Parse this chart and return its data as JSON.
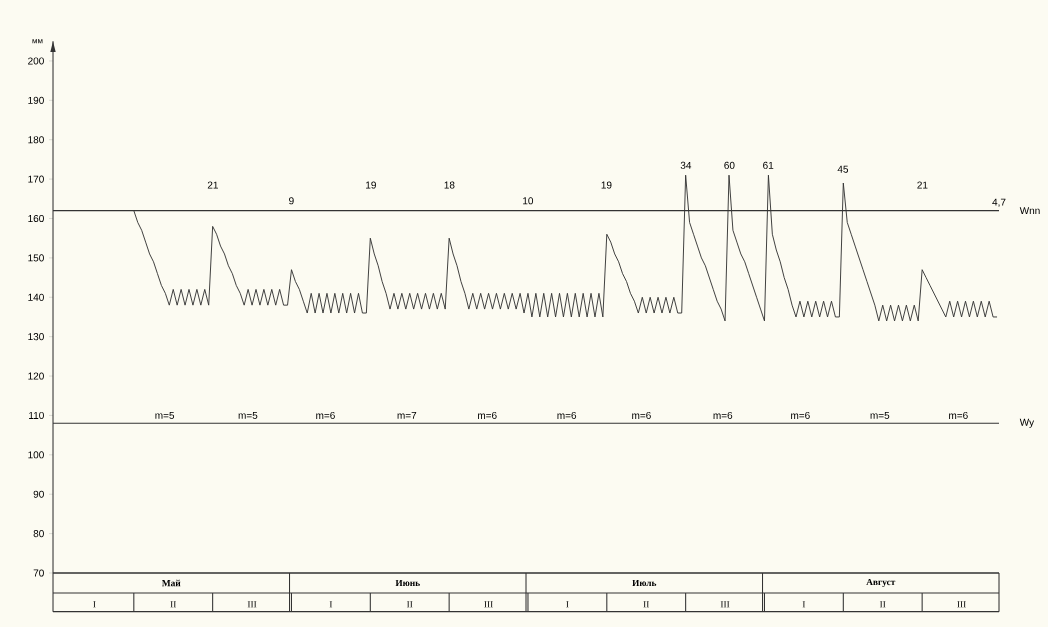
{
  "chart_data": {
    "type": "line",
    "ylabel": "мм",
    "color": "#333333",
    "ylim": [
      70,
      205
    ],
    "yticks": [
      70,
      80,
      90,
      100,
      110,
      120,
      130,
      140,
      150,
      160,
      170,
      180,
      190,
      200
    ],
    "categories": [
      null,
      null,
      null,
      null,
      null,
      null,
      null,
      null,
      null,
      null,
      "I",
      null,
      null,
      null,
      null,
      null,
      null,
      null,
      null,
      null,
      null,
      null,
      null,
      null,
      null,
      null,
      null,
      null,
      null,
      null,
      "II",
      null,
      null,
      null,
      null,
      null,
      null,
      null,
      null,
      null,
      null,
      null,
      null,
      null,
      null,
      null,
      null,
      null,
      null,
      null,
      "III",
      null,
      null,
      null,
      null,
      null,
      null,
      null,
      null,
      null,
      null,
      null,
      null,
      null,
      null,
      null,
      null,
      null,
      null,
      null,
      "I",
      null,
      null,
      null,
      null,
      null,
      null,
      null,
      null,
      null,
      null,
      null,
      null,
      null,
      null,
      null,
      null,
      null,
      null,
      null,
      "II",
      null,
      null,
      null,
      null,
      null,
      null,
      null,
      null,
      null,
      null,
      null,
      null,
      null,
      null,
      null,
      null,
      null,
      null,
      null,
      "III",
      null,
      null,
      null,
      null,
      null,
      null,
      null,
      null,
      null,
      null,
      null,
      null,
      null,
      null,
      null,
      null,
      null,
      null,
      null,
      "I",
      null,
      null,
      null,
      null,
      null,
      null,
      null,
      null,
      null,
      null,
      null,
      null,
      null,
      null,
      null,
      null,
      null,
      null,
      null,
      "II",
      null,
      null,
      null,
      null,
      null,
      null,
      null,
      null,
      null,
      null,
      null,
      null,
      null,
      null,
      null,
      null,
      null,
      null,
      null,
      "III",
      null,
      null,
      null,
      null,
      null,
      null,
      null,
      null,
      null,
      null,
      null,
      null,
      null,
      null,
      null,
      null,
      null,
      null,
      null,
      "I",
      null,
      null,
      null,
      null,
      null,
      null,
      null,
      null,
      null,
      null,
      null,
      null,
      null,
      null,
      null,
      null,
      null,
      null,
      null,
      "II",
      null,
      null,
      null,
      null,
      null,
      null,
      null,
      null,
      null,
      null,
      null,
      null,
      null,
      null,
      null,
      null,
      null,
      null,
      null,
      "III",
      null,
      null,
      null,
      null,
      null,
      null,
      null,
      null,
      null
    ],
    "values": [
      null,
      null,
      null,
      null,
      null,
      null,
      null,
      null,
      null,
      null,
      null,
      null,
      null,
      null,
      null,
      null,
      null,
      null,
      null,
      null,
      162,
      159,
      157,
      154,
      151,
      149,
      146,
      143,
      141,
      138,
      142,
      138,
      142,
      138,
      142,
      138,
      142,
      138,
      142,
      138,
      158,
      156,
      153,
      151,
      148,
      146,
      143,
      141,
      138,
      142,
      138,
      142,
      138,
      142,
      138,
      142,
      138,
      142,
      138,
      138,
      147,
      144,
      142,
      139,
      136,
      141,
      136,
      141,
      136,
      141,
      136,
      141,
      136,
      141,
      136,
      141,
      136,
      141,
      136,
      136,
      155,
      151,
      148,
      144,
      141,
      137,
      141,
      137,
      141,
      137,
      141,
      137,
      141,
      137,
      141,
      137,
      141,
      137,
      141,
      137,
      155,
      151,
      148,
      144,
      141,
      137,
      141,
      137,
      141,
      137,
      141,
      137,
      141,
      137,
      141,
      137,
      141,
      137,
      141,
      136,
      141,
      135,
      141,
      135,
      141,
      135,
      141,
      135,
      141,
      135,
      141,
      135,
      141,
      135,
      141,
      135,
      141,
      135,
      141,
      135,
      156,
      154,
      151,
      149,
      146,
      144,
      141,
      139,
      136,
      140,
      136,
      140,
      136,
      140,
      136,
      140,
      136,
      140,
      136,
      136,
      171,
      159,
      156,
      153,
      150,
      148,
      145,
      142,
      139,
      137,
      134,
      171,
      157,
      154,
      151,
      149,
      146,
      143,
      140,
      137,
      134,
      171,
      156,
      152,
      149,
      145,
      142,
      138,
      135,
      139,
      135,
      139,
      135,
      139,
      135,
      139,
      135,
      139,
      135,
      135,
      169,
      159,
      156,
      153,
      150,
      147,
      144,
      141,
      138,
      134,
      138,
      134,
      138,
      134,
      138,
      134,
      138,
      134,
      138,
      134,
      147,
      145,
      143,
      141,
      139,
      137,
      135,
      139,
      135,
      139,
      135,
      139,
      135,
      139,
      135,
      139,
      135,
      139,
      135,
      135
    ],
    "ref_lines": [
      {
        "axis": "y",
        "value": 162,
        "label": "Wnn"
      },
      {
        "axis": "y",
        "value": 108,
        "label": "Wy"
      }
    ],
    "annotations": [
      "Май",
      "Июнь",
      "Июль",
      "Август",
      "21",
      "9",
      "19",
      "18",
      "10",
      "19",
      "34",
      "60",
      "61",
      "45",
      "21",
      "4,7",
      "m=5",
      "m=5",
      "m=6",
      "m=7",
      "m=6",
      "m=6",
      "m=6",
      "m=6",
      "m=6",
      "m=5",
      "m=6"
    ]
  }
}
